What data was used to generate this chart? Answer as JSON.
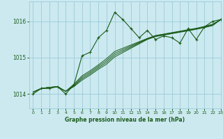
{
  "title": "Graphe pression niveau de la mer (hPa)",
  "bg_color": "#cce9f0",
  "grid_color": "#99ccd9",
  "line_color": "#1a5c1a",
  "text_color": "#1a5c1a",
  "xlim": [
    -0.5,
    23
  ],
  "ylim": [
    1013.6,
    1016.55
  ],
  "yticks": [
    1014,
    1015,
    1016
  ],
  "xticks": [
    0,
    1,
    2,
    3,
    4,
    5,
    6,
    7,
    8,
    9,
    10,
    11,
    12,
    13,
    14,
    15,
    16,
    17,
    18,
    19,
    20,
    21,
    22,
    23
  ],
  "series": [
    [
      1014.0,
      1014.15,
      1014.15,
      1014.2,
      1014.0,
      1014.25,
      1015.05,
      1015.15,
      1015.55,
      1015.75,
      1016.25,
      1016.05,
      1015.8,
      1015.55,
      1015.75,
      1015.5,
      1015.6,
      1015.55,
      1015.4,
      1015.8,
      1015.5,
      1015.85,
      1016.0,
      1016.05
    ],
    [
      1014.05,
      1014.15,
      1014.18,
      1014.2,
      1014.07,
      1014.2,
      1014.38,
      1014.52,
      1014.68,
      1014.82,
      1015.02,
      1015.14,
      1015.26,
      1015.38,
      1015.5,
      1015.58,
      1015.62,
      1015.66,
      1015.7,
      1015.74,
      1015.78,
      1015.83,
      1015.88,
      1016.05
    ],
    [
      1014.05,
      1014.15,
      1014.18,
      1014.2,
      1014.07,
      1014.22,
      1014.42,
      1014.56,
      1014.72,
      1014.87,
      1015.07,
      1015.18,
      1015.29,
      1015.4,
      1015.51,
      1015.59,
      1015.63,
      1015.67,
      1015.71,
      1015.75,
      1015.79,
      1015.84,
      1015.9,
      1016.05
    ],
    [
      1014.05,
      1014.15,
      1014.18,
      1014.2,
      1014.07,
      1014.24,
      1014.46,
      1014.6,
      1014.76,
      1014.92,
      1015.12,
      1015.22,
      1015.32,
      1015.42,
      1015.52,
      1015.6,
      1015.64,
      1015.68,
      1015.72,
      1015.76,
      1015.8,
      1015.85,
      1015.91,
      1016.05
    ],
    [
      1014.05,
      1014.15,
      1014.18,
      1014.2,
      1014.07,
      1014.27,
      1014.5,
      1014.64,
      1014.8,
      1014.97,
      1015.17,
      1015.26,
      1015.35,
      1015.44,
      1015.53,
      1015.61,
      1015.65,
      1015.69,
      1015.73,
      1015.77,
      1015.81,
      1015.86,
      1015.92,
      1016.05
    ]
  ]
}
